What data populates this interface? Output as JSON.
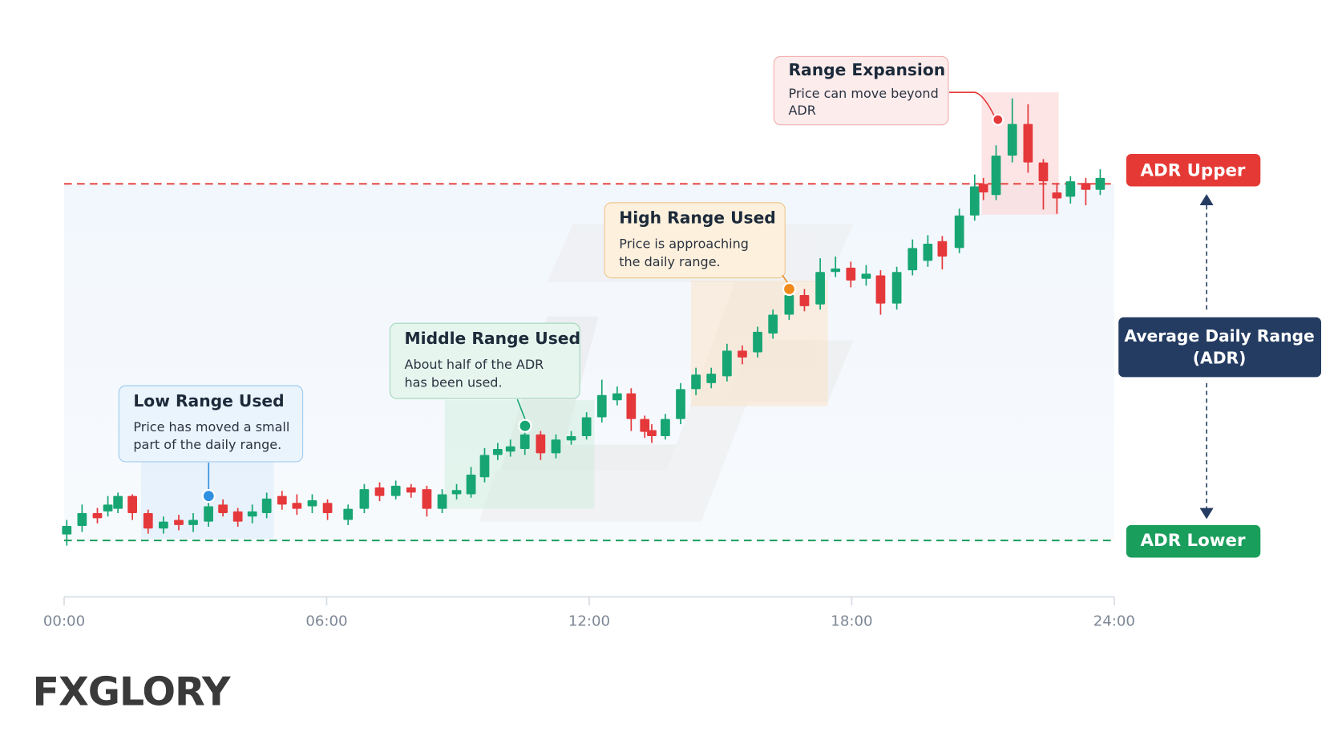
{
  "chart_data": {
    "type": "candlestick",
    "xlim": [
      0,
      24
    ],
    "xticks": [
      {
        "value": 0,
        "label": "00:00"
      },
      {
        "value": 6,
        "label": "06:00"
      },
      {
        "value": 12,
        "label": "12:00"
      },
      {
        "value": 18,
        "label": "18:00"
      },
      {
        "value": 24,
        "label": "24:00"
      }
    ],
    "ylim": [
      0,
      640
    ],
    "up_color": "#17a673",
    "down_color": "#e5383b",
    "x": [
      0.06,
      0.41,
      0.76,
      1.0,
      1.23,
      1.56,
      1.92,
      2.27,
      2.62,
      2.95,
      3.3,
      3.63,
      3.97,
      4.3,
      4.63,
      4.98,
      5.32,
      5.67,
      6.02,
      6.49,
      6.86,
      7.21,
      7.58,
      7.93,
      8.29,
      8.64,
      8.97,
      9.3,
      9.61,
      9.91,
      10.2,
      10.53,
      10.89,
      11.24,
      11.59,
      11.94,
      12.29,
      12.64,
      12.96,
      13.27,
      13.43,
      13.74,
      14.09,
      14.44,
      14.79,
      15.15,
      15.5,
      15.85,
      16.2,
      16.57,
      16.92,
      17.28,
      17.63,
      17.98,
      18.33,
      18.66,
      19.03,
      19.39,
      19.74,
      20.07,
      20.46,
      20.81,
      21.01,
      21.3,
      21.67,
      22.03,
      22.38,
      22.69,
      23.0,
      23.35,
      23.68
    ],
    "open": [
      75,
      85,
      100,
      102,
      105,
      120,
      100,
      82,
      92,
      86,
      90,
      110,
      102,
      96,
      100,
      120,
      112,
      108,
      112,
      92,
      105,
      130,
      120,
      130,
      128,
      105,
      122,
      122,
      142,
      168,
      172,
      175,
      192,
      170,
      185,
      190,
      212,
      232,
      240,
      210,
      197,
      190,
      210,
      245,
      252,
      260,
      290,
      288,
      310,
      332,
      355,
      344,
      382,
      387,
      374,
      378,
      345,
      384,
      395,
      418,
      410,
      448,
      485,
      472,
      518,
      555,
      510,
      475,
      470,
      486,
      478
    ],
    "high": [
      92,
      110,
      106,
      120,
      124,
      122,
      104,
      96,
      98,
      100,
      112,
      116,
      106,
      110,
      124,
      126,
      122,
      122,
      116,
      110,
      134,
      136,
      138,
      134,
      132,
      128,
      134,
      154,
      176,
      182,
      186,
      198,
      196,
      192,
      196,
      218,
      256,
      248,
      246,
      214,
      204,
      216,
      252,
      270,
      270,
      298,
      296,
      318,
      338,
      362,
      362,
      398,
      400,
      394,
      390,
      384,
      388,
      420,
      425,
      424,
      456,
      496,
      492,
      530,
      585,
      578,
      514,
      486,
      494,
      492,
      502
    ],
    "low": [
      62,
      78,
      88,
      96,
      100,
      92,
      76,
      76,
      80,
      78,
      84,
      96,
      84,
      88,
      94,
      104,
      98,
      100,
      92,
      86,
      100,
      114,
      116,
      118,
      96,
      100,
      116,
      118,
      136,
      162,
      166,
      168,
      162,
      164,
      180,
      186,
      206,
      226,
      196,
      188,
      182,
      186,
      204,
      238,
      246,
      254,
      274,
      282,
      304,
      326,
      336,
      338,
      376,
      364,
      366,
      332,
      338,
      378,
      388,
      385,
      404,
      442,
      466,
      466,
      510,
      498,
      455,
      450,
      462,
      460,
      472
    ],
    "close": [
      85,
      100,
      94,
      110,
      120,
      100,
      82,
      90,
      86,
      92,
      108,
      100,
      90,
      102,
      117,
      110,
      105,
      115,
      100,
      105,
      128,
      120,
      132,
      124,
      105,
      122,
      127,
      145,
      168,
      175,
      178,
      192,
      170,
      186,
      190,
      212,
      238,
      240,
      210,
      195,
      190,
      210,
      245,
      262,
      263,
      290,
      282,
      312,
      332,
      355,
      342,
      382,
      386,
      372,
      380,
      345,
      382,
      410,
      415,
      400,
      448,
      482,
      475,
      518,
      555,
      510,
      488,
      468,
      488,
      478,
      492
    ],
    "reference_lines": [
      {
        "label": "ADR Upper",
        "value": 485,
        "color": "#e53935"
      },
      {
        "label": "ADR Lower",
        "value": 68,
        "color": "#1a9e5c"
      }
    ],
    "range_label": [
      "Average Daily Range",
      "(ADR)"
    ],
    "annotations": [
      {
        "title": "Low Range Used",
        "text": [
          "Price has moved a small",
          "part of the daily range."
        ]
      },
      {
        "title": "Middle Range Used",
        "text": [
          "About half of the ADR",
          "has been used."
        ]
      },
      {
        "title": "High Range Used",
        "text": [
          "Price is approaching",
          "the daily range."
        ]
      },
      {
        "title": "Range Expansion",
        "text": [
          "Price can move beyond",
          "ADR"
        ]
      }
    ],
    "logo": "FXGLORY"
  }
}
